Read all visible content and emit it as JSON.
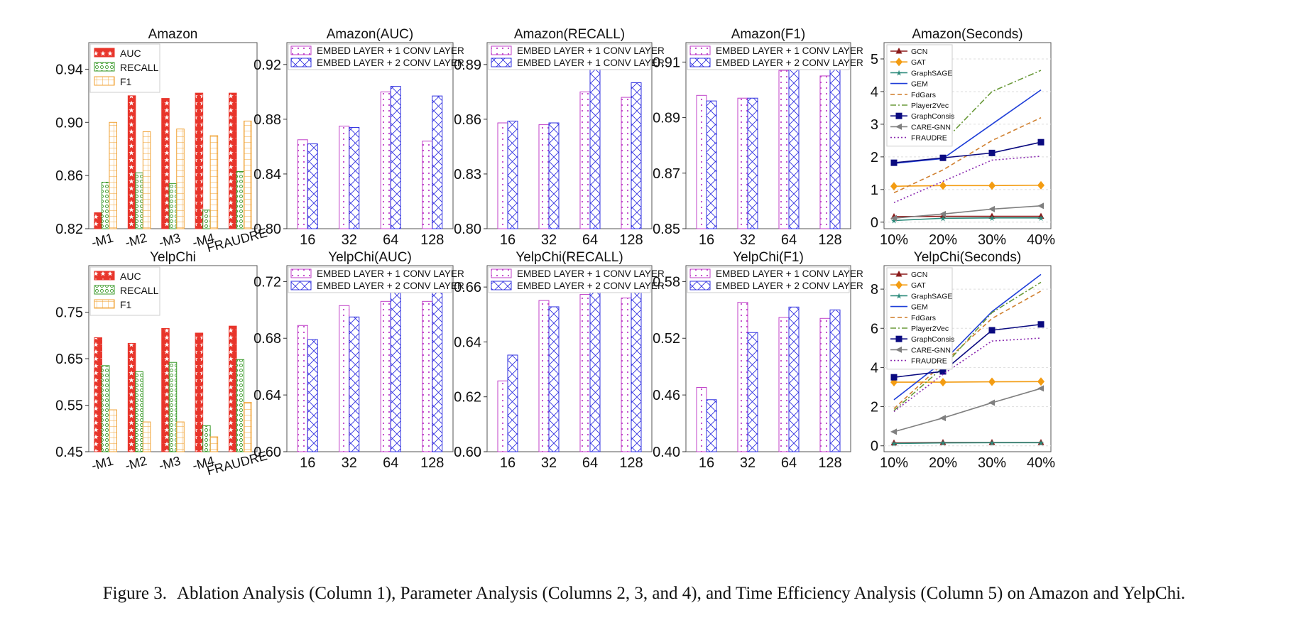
{
  "caption": {
    "label": "Figure 3.",
    "text": "Ablation Analysis (Column 1), Parameter Analysis (Columns 2, 3, and 4), and Time Efficiency Analysis (Column 5) on Amazon and YelpChi."
  },
  "colors": {
    "auc": "#e8352b",
    "recall": "#3a9a2a",
    "f1": "#f0a030",
    "conv1": "#c040c8",
    "conv2": "#3030e0",
    "GCN": "#8b1a1a",
    "GAT": "#f39c12",
    "GraphSAGE": "#2a8a7a",
    "GEM": "#1f3fd8",
    "FdGars": "#d08030",
    "Player2Vec": "#6a9a3a",
    "GraphConsis": "#0a0a80",
    "CARE-GNN": "#808080",
    "FRAUDRE": "#8a2ab0"
  },
  "chart_data": [
    {
      "id": "amazon-ablation",
      "type": "bar",
      "title": "Amazon",
      "categories": [
        "-M1",
        "-M2",
        "-M3",
        "-M4",
        "FRAUDRE"
      ],
      "series": [
        {
          "name": "AUC",
          "values": [
            0.832,
            0.92,
            0.918,
            0.922,
            0.922
          ]
        },
        {
          "name": "RECALL",
          "values": [
            0.855,
            0.862,
            0.854,
            0.834,
            0.863
          ]
        },
        {
          "name": "F1",
          "values": [
            0.9,
            0.893,
            0.895,
            0.89,
            0.901
          ]
        }
      ],
      "ylim": [
        0.82,
        0.96
      ],
      "yticks": [
        0.82,
        0.86,
        0.9,
        0.94
      ],
      "ytick_labels": [
        "0.82",
        "0.86",
        "0.90",
        "0.94"
      ],
      "legend": "top-left"
    },
    {
      "id": "amazon-auc",
      "type": "bar",
      "title": "Amazon(AUC)",
      "categories": [
        "16",
        "32",
        "64",
        "128"
      ],
      "series": [
        {
          "name": "EMBED LAYER + 1 CONV LAYER",
          "values": [
            0.865,
            0.875,
            0.9,
            0.864
          ]
        },
        {
          "name": "EMBED LAYER + 2 CONV LAYER",
          "values": [
            0.862,
            0.874,
            0.904,
            0.897
          ]
        }
      ],
      "ylim": [
        0.8,
        0.936
      ],
      "yticks": [
        0.8,
        0.84,
        0.88,
        0.92
      ],
      "ytick_labels": [
        "0.80",
        "0.84",
        "0.88",
        "0.92"
      ],
      "legend": "top"
    },
    {
      "id": "amazon-recall",
      "type": "bar",
      "title": "Amazon(RECALL)",
      "categories": [
        "16",
        "32",
        "64",
        "128"
      ],
      "series": [
        {
          "name": "EMBED LAYER + 1 CONV LAYER",
          "values": [
            0.858,
            0.857,
            0.875,
            0.872
          ]
        },
        {
          "name": "EMBED LAYER + 1 CONV LAYER",
          "values": [
            0.859,
            0.858,
            0.891,
            0.88
          ]
        }
      ],
      "ylim": [
        0.8,
        0.902
      ],
      "yticks": [
        0.8,
        0.83,
        0.86,
        0.89
      ],
      "ytick_labels": [
        "0.80",
        "0.83",
        "0.86",
        "0.89"
      ],
      "legend": "top"
    },
    {
      "id": "amazon-f1",
      "type": "bar",
      "title": "Amazon(F1)",
      "categories": [
        "16",
        "32",
        "64",
        "128"
      ],
      "series": [
        {
          "name": "EMBED LAYER + 1 CONV LAYER",
          "values": [
            0.898,
            0.897,
            0.907,
            0.905
          ]
        },
        {
          "name": "EMBED LAYER + 2 CONV LAYER",
          "values": [
            0.896,
            0.897,
            0.91,
            0.908
          ]
        }
      ],
      "ylim": [
        0.85,
        0.917
      ],
      "yticks": [
        0.85,
        0.87,
        0.89,
        0.91
      ],
      "ytick_labels": [
        "0.85",
        "0.87",
        "0.89",
        "0.91"
      ],
      "legend": "top"
    },
    {
      "id": "amazon-seconds",
      "type": "line",
      "title": "Amazon(Seconds)",
      "x": [
        "10%",
        "20%",
        "30%",
        "40%"
      ],
      "series": [
        {
          "name": "GCN",
          "values": [
            0.17,
            0.18,
            0.18,
            0.18
          ]
        },
        {
          "name": "GAT",
          "values": [
            1.1,
            1.12,
            1.12,
            1.13
          ]
        },
        {
          "name": "GraphSAGE",
          "values": [
            0.05,
            0.12,
            0.13,
            0.13
          ]
        },
        {
          "name": "GEM",
          "values": [
            1.8,
            1.95,
            3.0,
            4.05
          ]
        },
        {
          "name": "FdGars",
          "values": [
            0.9,
            1.6,
            2.5,
            3.2
          ]
        },
        {
          "name": "Player2Vec",
          "values": [
            2.45,
            2.45,
            4.0,
            4.65
          ]
        },
        {
          "name": "GraphConsis",
          "values": [
            1.82,
            1.97,
            2.12,
            2.45
          ]
        },
        {
          "name": "CARE-GNN",
          "values": [
            0.12,
            0.25,
            0.4,
            0.5
          ]
        },
        {
          "name": "FRAUDRE",
          "values": [
            0.6,
            1.25,
            1.9,
            2.02
          ]
        }
      ],
      "ylim": [
        -0.2,
        5.5
      ],
      "yticks": [
        0,
        1,
        2,
        3,
        4,
        5
      ],
      "ytick_labels": [
        "0",
        "1",
        "2",
        "3",
        "4",
        "5"
      ],
      "legend": "top-left"
    },
    {
      "id": "yelp-ablation",
      "type": "bar",
      "title": "YelpChi",
      "categories": [
        "-M1",
        "-M2",
        "-M3",
        "-M4",
        "FRAUDRE"
      ],
      "series": [
        {
          "name": "AUC",
          "values": [
            0.695,
            0.683,
            0.715,
            0.705,
            0.72
          ]
        },
        {
          "name": "RECALL",
          "values": [
            0.635,
            0.622,
            0.642,
            0.506,
            0.648
          ]
        },
        {
          "name": "F1",
          "values": [
            0.54,
            0.514,
            0.514,
            0.482,
            0.556
          ]
        }
      ],
      "ylim": [
        0.45,
        0.85
      ],
      "yticks": [
        0.45,
        0.55,
        0.65,
        0.75
      ],
      "ytick_labels": [
        "0.45",
        "0.55",
        "0.65",
        "0.75"
      ],
      "legend": "top-left"
    },
    {
      "id": "yelp-auc",
      "type": "bar",
      "title": "YelpChi(AUC)",
      "categories": [
        "16",
        "32",
        "64",
        "128"
      ],
      "series": [
        {
          "name": "EMBED LAYER + 1 CONV LAYER",
          "values": [
            0.689,
            0.703,
            0.706,
            0.706
          ]
        },
        {
          "name": "EMBED LAYER + 2 CONV LAYER",
          "values": [
            0.679,
            0.695,
            0.722,
            0.716
          ]
        }
      ],
      "ylim": [
        0.6,
        0.7312
      ],
      "yticks": [
        0.6,
        0.64,
        0.68,
        0.72
      ],
      "ytick_labels": [
        "0.60",
        "0.64",
        "0.68",
        "0.72"
      ],
      "legend": "top"
    },
    {
      "id": "yelp-recall",
      "type": "bar",
      "title": "YelpChi(RECALL)",
      "categories": [
        "16",
        "32",
        "64",
        "128"
      ],
      "series": [
        {
          "name": "EMBED LAYER + 1 CONV LAYER",
          "values": [
            0.6258,
            0.6551,
            0.6573,
            0.656
          ]
        },
        {
          "name": "EMBED LAYER + 2 CONV LAYER",
          "values": [
            0.6352,
            0.6528,
            0.6647,
            0.6602
          ]
        }
      ],
      "ylim": [
        0.6,
        0.6678
      ],
      "yticks": [
        0.6,
        0.62,
        0.64,
        0.66
      ],
      "ytick_labels": [
        "0.60",
        "0.62",
        "0.64",
        "0.66"
      ],
      "legend": "top"
    },
    {
      "id": "yelp-f1",
      "type": "bar",
      "title": "YelpChi(F1)",
      "categories": [
        "16",
        "32",
        "64",
        "128"
      ],
      "series": [
        {
          "name": "EMBED LAYER + 1 CONV LAYER",
          "values": [
            0.468,
            0.558,
            0.542,
            0.541
          ]
        },
        {
          "name": "EMBED LAYER + 2 CONV LAYER",
          "values": [
            0.455,
            0.526,
            0.553,
            0.55
          ]
        }
      ],
      "ylim": [
        0.4,
        0.5968
      ],
      "yticks": [
        0.4,
        0.46,
        0.52,
        0.58
      ],
      "ytick_labels": [
        "0.40",
        "0.46",
        "0.52",
        "0.58"
      ],
      "legend": "top"
    },
    {
      "id": "yelp-seconds",
      "type": "line",
      "title": "YelpChi(Seconds)",
      "x": [
        "10%",
        "20%",
        "30%",
        "40%"
      ],
      "series": [
        {
          "name": "GCN",
          "values": [
            0.15,
            0.17,
            0.17,
            0.17
          ]
        },
        {
          "name": "GAT",
          "values": [
            3.25,
            3.25,
            3.27,
            3.28
          ]
        },
        {
          "name": "GraphSAGE",
          "values": [
            0.12,
            0.15,
            0.16,
            0.16
          ]
        },
        {
          "name": "GEM",
          "values": [
            2.35,
            4.3,
            6.85,
            8.75
          ]
        },
        {
          "name": "FdGars",
          "values": [
            1.9,
            4.2,
            6.5,
            7.9
          ]
        },
        {
          "name": "Player2Vec",
          "values": [
            1.8,
            4.0,
            6.8,
            8.35
          ]
        },
        {
          "name": "GraphConsis",
          "values": [
            3.5,
            3.8,
            5.9,
            6.2
          ]
        },
        {
          "name": "CARE-GNN",
          "values": [
            0.72,
            1.42,
            2.2,
            2.93
          ]
        },
        {
          "name": "FRAUDRE",
          "values": [
            1.75,
            3.65,
            5.35,
            5.5
          ]
        }
      ],
      "ylim": [
        -0.3,
        9.2
      ],
      "yticks": [
        0,
        2,
        4,
        6,
        8
      ],
      "ytick_labels": [
        "0",
        "2",
        "4",
        "6",
        "8"
      ],
      "legend": "top-left"
    }
  ]
}
